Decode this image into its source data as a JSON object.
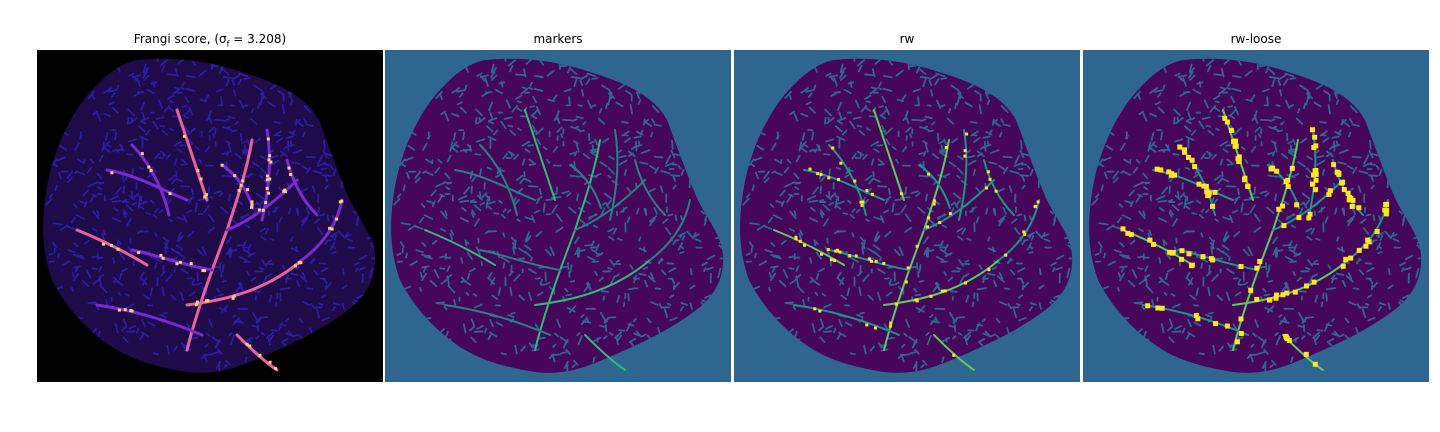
{
  "panels": [
    {
      "title": "Frangi score, (σ",
      "subscript": "f",
      "title_suffix": " = 3.208)",
      "background": "#000000",
      "tissue": "#1f0a4a",
      "texture": "#2a1fa6",
      "vessel": "#7a2ad0",
      "vessel_hot": "#e7649a",
      "highlight": "#fccf7a"
    },
    {
      "title": "markers",
      "background": "#2f6690",
      "tissue": "#46075a",
      "texture": "#2f6690",
      "vessel": "#2c7d8a",
      "vessel_hot": "#35b779"
    },
    {
      "title": "rw",
      "background": "#2f6690",
      "tissue": "#46075a",
      "texture": "#2f6690",
      "vessel": "#21918c",
      "vessel_hot": "#5ec962",
      "highlight": "#fde725"
    },
    {
      "title": "rw-loose",
      "background": "#2f6690",
      "tissue": "#46075a",
      "texture": "#2f6690",
      "vessel": "#21918c",
      "vessel_hot": "#5ec962",
      "highlight": "#fde725"
    }
  ]
}
